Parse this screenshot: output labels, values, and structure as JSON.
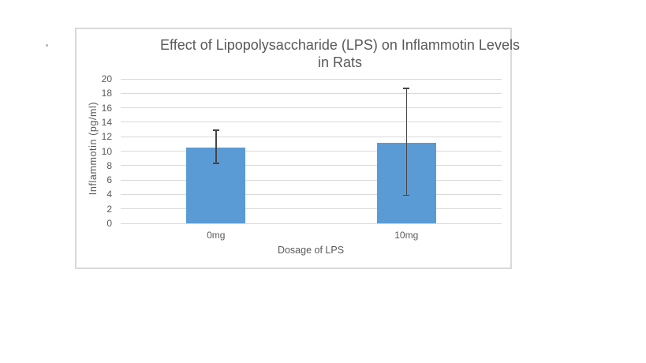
{
  "window": {
    "background": "#ffffff"
  },
  "chart_data": {
    "type": "bar",
    "title": "Effect of Lipopolysaccharide (LPS) on Inflammotin Levels in Rats",
    "title_lines": [
      "Effect of Lipopolysaccharide (LPS) on Inflammotin Levels",
      "in Rats"
    ],
    "xlabel": "Dosage of LPS",
    "ylabel": "Inflammotin (pg/ml)",
    "categories": [
      "0mg",
      "10mg"
    ],
    "values": [
      10.5,
      11.2
    ],
    "error_low": [
      8.3,
      3.9
    ],
    "error_high": [
      12.9,
      18.7
    ],
    "ylim": [
      0,
      20
    ],
    "ytick_step": 2,
    "yticks": [
      0,
      2,
      4,
      6,
      8,
      10,
      12,
      14,
      16,
      18,
      20
    ],
    "grid": "horizontal-only",
    "legend": "none",
    "colors": {
      "bar": "#5B9BD5",
      "gridline": "#D9D9D9",
      "axis_line": "#D9D9D9",
      "frame_border": "#D9D9D9",
      "error_bar": "#454545",
      "text": "#595959"
    }
  }
}
